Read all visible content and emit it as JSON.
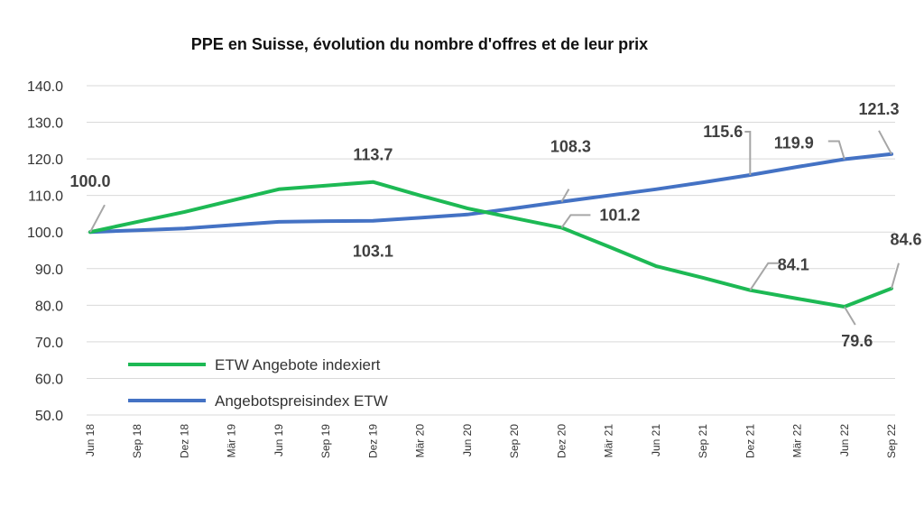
{
  "chart_data": {
    "type": "line",
    "title": "PPE en Suisse, évolution du nombre d'offres et de leur prix",
    "categories": [
      "Jun 18",
      "Sep 18",
      "Dez 18",
      "Mär 19",
      "Jun 19",
      "Sep 19",
      "Dez 19",
      "Mär 20",
      "Jun 20",
      "Sep 20",
      "Dez 20",
      "Mär 21",
      "Jun 21",
      "Sep 21",
      "Dez 21",
      "Mär 22",
      "Jun 22",
      "Sep 22"
    ],
    "ylim": [
      50,
      140
    ],
    "yticks": [
      "50.0",
      "60.0",
      "70.0",
      "80.0",
      "90.0",
      "100.0",
      "110.0",
      "120.0",
      "130.0",
      "140.0"
    ],
    "grid": "horizontal",
    "legend": "bottom-left",
    "series": [
      {
        "name": "ETW Angebote indexiert",
        "color": "#1db954",
        "values": [
          100.0,
          102.8,
          105.5,
          108.6,
          111.7,
          112.7,
          113.7,
          110.0,
          106.5,
          103.8,
          101.2,
          96.0,
          90.7,
          87.5,
          84.1,
          81.8,
          79.6,
          84.6
        ]
      },
      {
        "name": "Angebotspreisindex ETW",
        "color": "#4472c4",
        "values": [
          100.0,
          100.5,
          101.0,
          101.9,
          102.8,
          103.0,
          103.1,
          103.9,
          104.8,
          106.5,
          108.3,
          110.0,
          111.7,
          113.6,
          115.6,
          117.8,
          119.9,
          121.3
        ]
      }
    ],
    "data_labels": [
      {
        "series": 0,
        "index": 0,
        "text": "100.0"
      },
      {
        "series": 0,
        "index": 6,
        "text": "113.7"
      },
      {
        "series": 1,
        "index": 6,
        "text": "103.1"
      },
      {
        "series": 1,
        "index": 10,
        "text": "108.3"
      },
      {
        "series": 0,
        "index": 10,
        "text": "101.2"
      },
      {
        "series": 1,
        "index": 14,
        "text": "115.6"
      },
      {
        "series": 1,
        "index": 16,
        "text": "119.9"
      },
      {
        "series": 1,
        "index": 17,
        "text": "121.3"
      },
      {
        "series": 0,
        "index": 14,
        "text": "84.1"
      },
      {
        "series": 0,
        "index": 16,
        "text": "79.6"
      },
      {
        "series": 0,
        "index": 17,
        "text": "84.6"
      }
    ]
  }
}
